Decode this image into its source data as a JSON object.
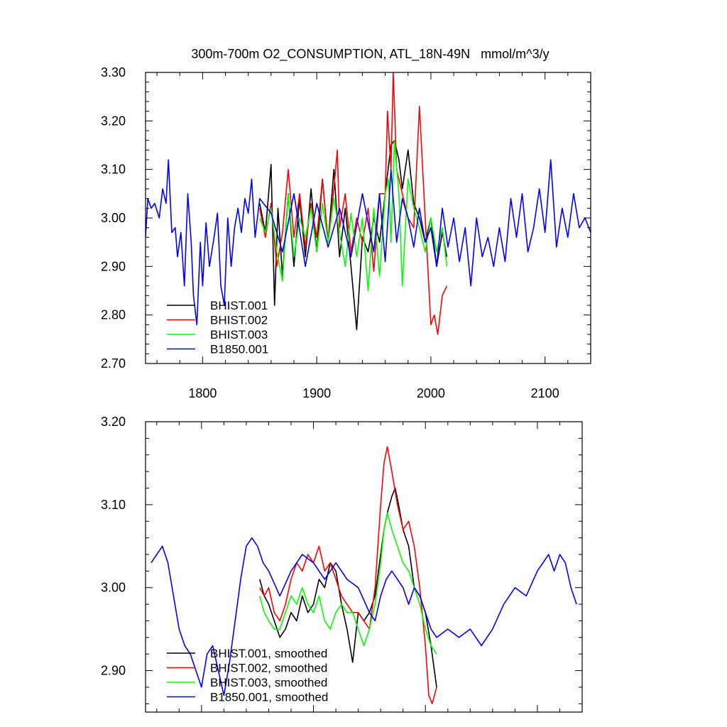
{
  "chart_data": [
    {
      "type": "line",
      "title": "300m-700m O2_CONSUMPTION, ATL_18N-49N   mmol/m^3/y",
      "xlabel": "",
      "ylabel": "",
      "xlim": [
        1750,
        2140
      ],
      "ylim": [
        2.7,
        3.3
      ],
      "xticks": [
        1800,
        1900,
        2000,
        2100
      ],
      "xtick_labels": [
        "1800",
        "1900",
        "2000",
        "2100"
      ],
      "yticks": [
        2.7,
        2.8,
        2.9,
        3.0,
        3.1,
        3.2,
        3.3
      ],
      "ytick_labels": [
        "2.70",
        "2.80",
        "2.90",
        "3.00",
        "3.10",
        "3.20",
        "3.30"
      ],
      "grid": false,
      "legend_position": "bottom-left",
      "series": [
        {
          "name": "BHIST.001",
          "color": "#000000",
          "x": [
            1850,
            1855,
            1860,
            1863,
            1866,
            1870,
            1875,
            1880,
            1885,
            1890,
            1895,
            1900,
            1905,
            1910,
            1915,
            1920,
            1925,
            1930,
            1935,
            1940,
            1945,
            1950,
            1955,
            1960,
            1965,
            1968,
            1972,
            1975,
            1980,
            1985,
            1990,
            1995,
            2000,
            2005,
            2010,
            2014
          ],
          "values": [
            3.03,
            2.97,
            3.11,
            2.82,
            3.02,
            2.88,
            3.05,
            2.9,
            3.04,
            2.92,
            3.06,
            2.93,
            3.08,
            2.95,
            3.1,
            2.92,
            3.02,
            2.9,
            2.77,
            2.96,
            2.93,
            3.0,
            2.95,
            3.05,
            3.15,
            3.16,
            3.12,
            3.06,
            3.14,
            3.03,
            3.0,
            2.95,
            3.0,
            2.9,
            2.97,
            2.92
          ]
        },
        {
          "name": "BHIST.002",
          "color": "#ff0000",
          "x": [
            1850,
            1855,
            1860,
            1865,
            1870,
            1875,
            1880,
            1885,
            1890,
            1895,
            1900,
            1905,
            1910,
            1915,
            1918,
            1920,
            1925,
            1930,
            1935,
            1940,
            1945,
            1950,
            1955,
            1960,
            1962,
            1965,
            1967,
            1970,
            1975,
            1980,
            1985,
            1990,
            1995,
            2000,
            2003,
            2006,
            2010,
            2014
          ],
          "values": [
            3.02,
            2.96,
            3.03,
            2.9,
            2.97,
            3.1,
            2.96,
            3.05,
            2.94,
            3.03,
            2.96,
            3.08,
            2.95,
            3.06,
            3.14,
            2.98,
            3.05,
            2.93,
            3.0,
            2.95,
            3.02,
            2.89,
            3.05,
            3.05,
            3.22,
            3.1,
            3.3,
            3.1,
            3.05,
            3.0,
            2.98,
            3.23,
            3.0,
            2.78,
            2.8,
            2.76,
            2.84,
            2.86
          ]
        },
        {
          "name": "BHIST.003",
          "color": "#00ff00",
          "x": [
            1850,
            1855,
            1860,
            1865,
            1870,
            1875,
            1880,
            1885,
            1890,
            1895,
            1900,
            1905,
            1910,
            1915,
            1920,
            1925,
            1930,
            1935,
            1940,
            1945,
            1950,
            1955,
            1960,
            1963,
            1965,
            1968,
            1972,
            1975,
            1980,
            1985,
            1990,
            1995,
            2000,
            2005,
            2010,
            2014
          ],
          "values": [
            3.0,
            2.97,
            3.02,
            2.93,
            2.87,
            3.05,
            2.92,
            3.0,
            2.96,
            3.02,
            2.93,
            3.03,
            2.95,
            3.04,
            2.97,
            2.9,
            3.01,
            2.92,
            3.0,
            2.85,
            3.02,
            2.88,
            3.05,
            3.08,
            2.95,
            3.16,
            3.05,
            2.86,
            3.08,
            3.02,
            2.98,
            2.93,
            3.0,
            2.93,
            2.98,
            2.9
          ]
        },
        {
          "name": "B1850.001",
          "color": "#0000ff",
          "x": [
            1750,
            1752,
            1755,
            1758,
            1762,
            1765,
            1768,
            1770,
            1773,
            1776,
            1778,
            1781,
            1784,
            1787,
            1790,
            1792,
            1795,
            1798,
            1800,
            1803,
            1806,
            1810,
            1813,
            1816,
            1819,
            1822,
            1825,
            1828,
            1831,
            1834,
            1837,
            1840,
            1843,
            1846,
            1850,
            1860,
            1870,
            1880,
            1890,
            1900,
            1910,
            1920,
            1930,
            1940,
            1950,
            1955,
            1960,
            1965,
            1970,
            1975,
            1980,
            1985,
            1990,
            1995,
            2000,
            2005,
            2010,
            2015,
            2020,
            2025,
            2030,
            2035,
            2040,
            2045,
            2050,
            2055,
            2060,
            2065,
            2070,
            2075,
            2080,
            2085,
            2090,
            2095,
            2100,
            2105,
            2110,
            2115,
            2120,
            2125,
            2130,
            2135,
            2140
          ],
          "values": [
            2.96,
            3.04,
            3.02,
            3.03,
            3.0,
            3.06,
            3.03,
            3.12,
            2.97,
            2.98,
            2.92,
            2.97,
            2.86,
            3.05,
            2.95,
            2.84,
            2.78,
            2.95,
            2.86,
            2.99,
            2.9,
            2.96,
            3.01,
            2.86,
            2.82,
            3.0,
            2.9,
            2.98,
            3.02,
            2.97,
            3.04,
            3.01,
            3.08,
            2.96,
            3.04,
            3.01,
            2.93,
            3.05,
            2.9,
            3.03,
            2.94,
            3.02,
            2.92,
            3.05,
            2.93,
            3.05,
            2.91,
            3.1,
            2.95,
            3.04,
            3.0,
            2.94,
            3.02,
            2.95,
            2.98,
            2.9,
            3.02,
            2.94,
            3.0,
            2.91,
            2.98,
            2.86,
            3.0,
            2.92,
            2.96,
            2.9,
            2.98,
            2.91,
            3.04,
            2.96,
            3.05,
            2.93,
            2.98,
            3.06,
            2.97,
            3.12,
            2.94,
            3.02,
            2.96,
            3.05,
            2.98,
            3.0,
            2.97
          ]
        }
      ],
      "legend": [
        "BHIST.001",
        "BHIST.002",
        "BHIST.003",
        "B1850.001"
      ]
    },
    {
      "type": "line",
      "title": "",
      "xlabel": "",
      "ylabel": "",
      "xlim": [
        1750,
        2140
      ],
      "ylim": [
        2.85,
        3.2
      ],
      "xticks": [
        1800,
        1900,
        2000,
        2100
      ],
      "xtick_labels": [],
      "yticks": [
        2.9,
        3.0,
        3.1,
        3.2
      ],
      "ytick_labels": [
        "2.90",
        "3.00",
        "3.10",
        "3.20"
      ],
      "grid": false,
      "legend_position": "bottom-left",
      "series": [
        {
          "name": "BHIST.001, smoothed",
          "color": "#000000",
          "x": [
            1852,
            1856,
            1860,
            1865,
            1870,
            1875,
            1880,
            1885,
            1890,
            1895,
            1900,
            1905,
            1910,
            1915,
            1920,
            1925,
            1930,
            1935,
            1940,
            1945,
            1950,
            1955,
            1960,
            1963,
            1966,
            1970,
            1973,
            1976,
            1980,
            1985,
            1990,
            1995,
            2000,
            2005,
            2010
          ],
          "values": [
            3.01,
            2.99,
            2.98,
            2.96,
            2.94,
            2.95,
            2.97,
            2.96,
            2.99,
            2.97,
            2.98,
            3.01,
            3.0,
            3.03,
            3.02,
            2.98,
            2.95,
            2.91,
            2.97,
            2.96,
            2.97,
            2.99,
            3.04,
            3.07,
            3.09,
            3.11,
            3.12,
            3.1,
            3.07,
            3.05,
            3.0,
            2.99,
            2.97,
            2.93,
            2.88
          ]
        },
        {
          "name": "BHIST.002, smoothed",
          "color": "#ff0000",
          "x": [
            1852,
            1856,
            1860,
            1865,
            1870,
            1875,
            1880,
            1885,
            1890,
            1895,
            1900,
            1905,
            1910,
            1915,
            1920,
            1925,
            1930,
            1935,
            1940,
            1945,
            1950,
            1955,
            1960,
            1963,
            1966,
            1970,
            1975,
            1980,
            1985,
            1990,
            1995,
            2000,
            2003,
            2006,
            2010
          ],
          "values": [
            3.0,
            2.99,
            3.0,
            2.97,
            2.96,
            2.98,
            3.01,
            3.03,
            3.02,
            3.04,
            3.03,
            3.05,
            3.02,
            3.03,
            3.01,
            2.99,
            2.98,
            2.97,
            2.97,
            2.96,
            2.95,
            3.0,
            3.1,
            3.15,
            3.17,
            3.14,
            3.1,
            3.07,
            3.08,
            3.05,
            3.0,
            2.93,
            2.87,
            2.86,
            2.88
          ]
        },
        {
          "name": "BHIST.003, smoothed",
          "color": "#00ff00",
          "x": [
            1852,
            1856,
            1860,
            1865,
            1870,
            1875,
            1880,
            1885,
            1890,
            1895,
            1900,
            1905,
            1910,
            1915,
            1920,
            1925,
            1930,
            1935,
            1940,
            1945,
            1950,
            1955,
            1960,
            1963,
            1966,
            1970,
            1975,
            1980,
            1985,
            1990,
            1995,
            2000,
            2005,
            2010
          ],
          "values": [
            2.99,
            2.97,
            2.96,
            2.95,
            2.95,
            2.97,
            2.99,
            2.98,
            3.0,
            2.98,
            2.97,
            2.99,
            2.96,
            2.95,
            2.97,
            2.98,
            2.97,
            2.97,
            2.95,
            2.93,
            2.95,
            2.98,
            3.03,
            3.07,
            3.09,
            3.07,
            3.05,
            3.03,
            3.02,
            3.0,
            2.98,
            2.95,
            2.93,
            2.92
          ]
        },
        {
          "name": "B1850.001, smoothed",
          "color": "#0000ff",
          "x": [
            1755,
            1760,
            1765,
            1770,
            1775,
            1780,
            1785,
            1790,
            1795,
            1800,
            1805,
            1810,
            1815,
            1820,
            1825,
            1830,
            1835,
            1840,
            1845,
            1850,
            1855,
            1860,
            1870,
            1880,
            1890,
            1900,
            1910,
            1920,
            1930,
            1940,
            1950,
            1955,
            1960,
            1965,
            1970,
            1975,
            1980,
            1985,
            1990,
            1995,
            2000,
            2005,
            2010,
            2020,
            2030,
            2040,
            2050,
            2060,
            2070,
            2080,
            2090,
            2100,
            2110,
            2115,
            2120,
            2125,
            2130,
            2135
          ],
          "values": [
            3.03,
            3.04,
            3.05,
            3.03,
            2.99,
            2.95,
            2.93,
            2.92,
            2.9,
            2.88,
            2.92,
            2.93,
            2.9,
            2.87,
            2.91,
            2.96,
            3.01,
            3.05,
            3.06,
            3.05,
            3.03,
            3.02,
            2.99,
            3.02,
            3.04,
            3.03,
            3.01,
            3.03,
            3.01,
            3.0,
            2.97,
            2.96,
            2.99,
            3.01,
            3.02,
            3.01,
            3.0,
            2.98,
            3.0,
            2.99,
            2.97,
            2.95,
            2.94,
            2.95,
            2.94,
            2.95,
            2.93,
            2.95,
            2.98,
            3.0,
            2.99,
            3.02,
            3.04,
            3.02,
            3.04,
            3.03,
            3.0,
            2.98
          ]
        }
      ],
      "legend": [
        "BHIST.001, smoothed",
        "BHIST.002, smoothed",
        "BHIST.003, smoothed",
        "B1850.001, smoothed"
      ]
    }
  ]
}
